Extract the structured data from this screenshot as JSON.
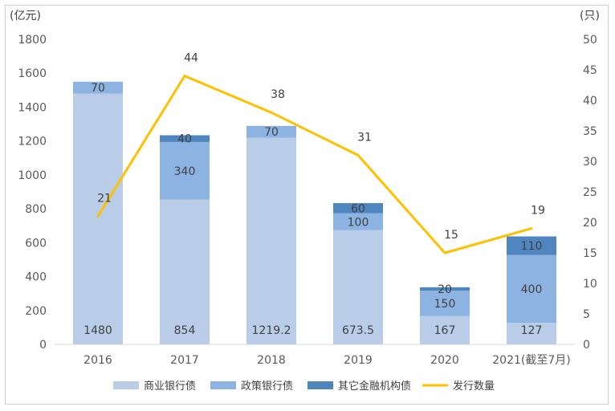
{
  "chart_data": {
    "type": "bar",
    "stacked": true,
    "categories": [
      "2016",
      "2017",
      "2018",
      "2019",
      "2020",
      "2021(截至7月)"
    ],
    "y_left_unit": "(亿元)",
    "y_right_unit": "(只)",
    "ylim_left": [
      0,
      1800
    ],
    "ylim_right": [
      0,
      50
    ],
    "y_left_ticks": [
      "0",
      "200",
      "400",
      "600",
      "800",
      "1000",
      "1200",
      "1400",
      "1600",
      "1800"
    ],
    "y_right_ticks": [
      "0",
      "5",
      "10",
      "15",
      "20",
      "25",
      "30",
      "35",
      "40",
      "45",
      "50"
    ],
    "series": [
      {
        "name": "商业银行债",
        "color": "#b9cde9",
        "values": [
          1480,
          854,
          1219.2,
          673.5,
          167,
          127
        ],
        "labels": [
          "1480",
          "854",
          "1219.2",
          "673.5",
          "167",
          "127"
        ]
      },
      {
        "name": "政策银行债",
        "color": "#8db3e2",
        "values": [
          70,
          340,
          70,
          100,
          150,
          400
        ],
        "labels": [
          "70",
          "340",
          "70",
          "100",
          "150",
          "400"
        ]
      },
      {
        "name": "其它金融机构债",
        "color": "#4f86c0",
        "values": [
          0,
          40,
          0,
          60,
          20,
          110
        ],
        "labels": [
          "",
          "40",
          "",
          "60",
          "20",
          "110"
        ]
      }
    ],
    "line": {
      "name": "发行数量",
      "color": "#ffc000",
      "axis": "right",
      "values": [
        21,
        44,
        38,
        31,
        15,
        19
      ],
      "labels": [
        "21",
        "44",
        "38",
        "31",
        "15",
        "19"
      ]
    },
    "legend_position": "bottom",
    "grid": false
  }
}
